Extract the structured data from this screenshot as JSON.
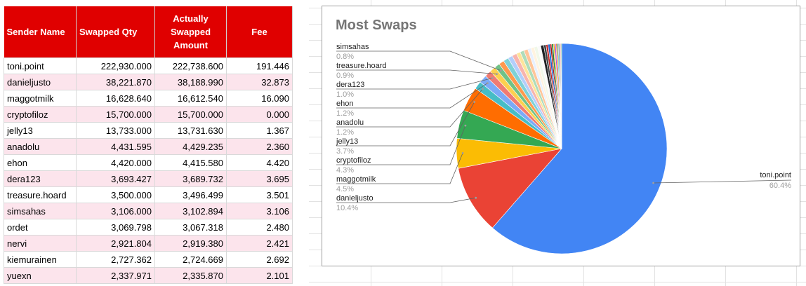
{
  "table": {
    "headers": [
      "Sender Name",
      "Swapped Qty",
      "Actually\nSwapped\nAmount",
      "Fee"
    ],
    "rows": [
      {
        "name": "toni.point",
        "qty": "222,930.000",
        "actual": "222,738.600",
        "fee": "191.446"
      },
      {
        "name": "danieljusto",
        "qty": "38,221.870",
        "actual": "38,188.990",
        "fee": "32.873"
      },
      {
        "name": "maggotmilk",
        "qty": "16,628.640",
        "actual": "16,612.540",
        "fee": "16.090"
      },
      {
        "name": "cryptofiloz",
        "qty": "15,700.000",
        "actual": "15,700.000",
        "fee": "0.000"
      },
      {
        "name": "jelly13",
        "qty": "13,733.000",
        "actual": "13,731.630",
        "fee": "1.367"
      },
      {
        "name": "anadolu",
        "qty": "4,431.595",
        "actual": "4,429.235",
        "fee": "2.360"
      },
      {
        "name": "ehon",
        "qty": "4,420.000",
        "actual": "4,415.580",
        "fee": "4.420"
      },
      {
        "name": "dera123",
        "qty": "3,693.427",
        "actual": "3,689.732",
        "fee": "3.695"
      },
      {
        "name": "treasure.hoard",
        "qty": "3,500.000",
        "actual": "3,496.499",
        "fee": "3.501"
      },
      {
        "name": "simsahas",
        "qty": "3,106.000",
        "actual": "3,102.894",
        "fee": "3.106"
      },
      {
        "name": "ordet",
        "qty": "3,069.798",
        "actual": "3,067.318",
        "fee": "2.480"
      },
      {
        "name": "nervi",
        "qty": "2,921.804",
        "actual": "2,919.380",
        "fee": "2.421"
      },
      {
        "name": "kiemurainen",
        "qty": "2,727.362",
        "actual": "2,724.669",
        "fee": "2.692"
      },
      {
        "name": "yuexn",
        "qty": "2,337.971",
        "actual": "2,335.870",
        "fee": "2.101"
      }
    ]
  },
  "colors": {
    "header_bg": "#e00000",
    "alt_row_bg": "#fce4ec"
  },
  "chart_data": {
    "type": "pie",
    "title": "Most Swaps",
    "slices": [
      {
        "name": "toni.point",
        "value": 60.4,
        "label": "60.4%",
        "color": "#4285f4"
      },
      {
        "name": "danieljusto",
        "value": 10.4,
        "label": "10.4%",
        "color": "#ea4335"
      },
      {
        "name": "maggotmilk",
        "value": 4.5,
        "label": "4.5%",
        "color": "#fbbc04"
      },
      {
        "name": "cryptofiloz",
        "value": 4.3,
        "label": "4.3%",
        "color": "#34a853"
      },
      {
        "name": "jelly13",
        "value": 3.7,
        "label": "3.7%",
        "color": "#ff6d01"
      },
      {
        "name": "anadolu",
        "value": 1.2,
        "label": "1.2%",
        "color": "#46bdc6"
      },
      {
        "name": "ehon",
        "value": 1.2,
        "label": "1.2%",
        "color": "#7baaf7"
      },
      {
        "name": "dera123",
        "value": 1.0,
        "label": "1.0%",
        "color": "#f07b72"
      },
      {
        "name": "treasure.hoard",
        "value": 0.9,
        "label": "0.9%",
        "color": "#fcd04f"
      },
      {
        "name": "simsahas",
        "value": 0.8,
        "label": "0.8%",
        "color": "#71c287"
      },
      {
        "value": 0.8,
        "color": "#ff994d"
      },
      {
        "value": 0.8,
        "color": "#7ed1d7"
      },
      {
        "value": 0.7,
        "color": "#b3cefb"
      },
      {
        "value": 0.7,
        "color": "#f7b4ae"
      },
      {
        "value": 0.6,
        "color": "#fde49b"
      },
      {
        "value": 0.6,
        "color": "#aedcba"
      },
      {
        "value": 0.6,
        "color": "#ffc599"
      },
      {
        "value": 0.5,
        "color": "#e8f0fe"
      },
      {
        "value": 0.5,
        "color": "#fff3e0"
      },
      {
        "value": 0.5,
        "color": "#f1f8e9"
      },
      {
        "value": 0.5,
        "color": "#fafafa"
      },
      {
        "value": 0.45,
        "color": "#202124"
      },
      {
        "value": 0.35,
        "color": "#3c4043"
      },
      {
        "value": 0.3,
        "color": "#c5221f"
      },
      {
        "value": 0.3,
        "color": "#1967d2"
      },
      {
        "value": 0.25,
        "color": "#b31412"
      },
      {
        "value": 0.25,
        "color": "#188038"
      },
      {
        "value": 0.2,
        "color": "#f9ab00"
      },
      {
        "value": 0.2,
        "color": "#a142f4"
      },
      {
        "value": 0.2,
        "color": "#e37400"
      },
      {
        "value": 0.15,
        "color": "#12b5cb"
      },
      {
        "value": 0.15,
        "color": "#5f6368"
      },
      {
        "value": 0.15,
        "color": "#9aa0a6"
      },
      {
        "value": 0.1,
        "color": "#d93025"
      },
      {
        "value": 0.1,
        "color": "#1e8e3e"
      }
    ],
    "labeled_slices": [
      "simsahas",
      "treasure.hoard",
      "dera123",
      "ehon",
      "anadolu",
      "jelly13",
      "cryptofiloz",
      "maggotmilk",
      "danieljusto",
      "toni.point"
    ]
  }
}
